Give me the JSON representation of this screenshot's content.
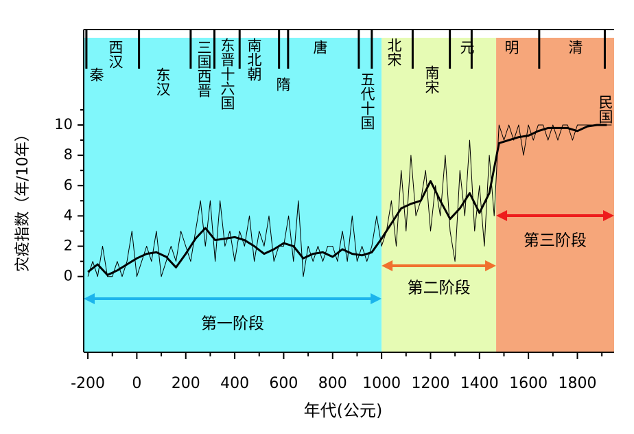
{
  "chart_data": {
    "type": "line",
    "x_label": "年代(公元)",
    "y_label": "灾疫指数（年/10年）",
    "xlim": [
      -217,
      1950
    ],
    "ylim": [
      -5,
      16.3
    ],
    "xticks": [
      -200,
      0,
      200,
      400,
      600,
      800,
      1000,
      1200,
      1400,
      1600,
      1800
    ],
    "xticks_minor": [
      -100,
      100,
      300,
      500,
      700,
      900,
      1100,
      1300,
      1500,
      1700,
      1900
    ],
    "yticks": [
      0,
      2,
      4,
      6,
      8,
      10
    ],
    "yticks_minor": [
      1,
      3,
      5,
      7,
      9,
      11
    ],
    "dynasties": [
      "秦",
      "西汉",
      "东汉",
      "三国西晋",
      "东晋十六国",
      "南北朝",
      "隋",
      "唐",
      "五代十国",
      "北宋",
      "南宋",
      "元",
      "明",
      "清",
      "民国"
    ],
    "dynasty_boundaries": [
      -206,
      9,
      220,
      317,
      420,
      581,
      618,
      907,
      960,
      1127,
      1279,
      1368,
      1644,
      1912
    ],
    "stages": [
      {
        "label": "第一阶段",
        "start": -217,
        "end": 1000,
        "color": "#1cb4ec",
        "background": "#80f7fb"
      },
      {
        "label": "第二阶段",
        "start": 1000,
        "end": 1468,
        "color": "#f0702e",
        "background": "#e6fbb4"
      },
      {
        "label": "第三阶段",
        "start": 1468,
        "end": 1950,
        "color": "#ee1c1c",
        "background": "#f6a67a"
      }
    ],
    "series": [
      {
        "color": "#000000",
        "width": 1,
        "x": [
          -200,
          -180,
          -160,
          -140,
          -120,
          -100,
          -80,
          -60,
          -40,
          -20,
          0,
          20,
          40,
          60,
          80,
          100,
          120,
          140,
          160,
          180,
          200,
          220,
          240,
          260,
          280,
          300,
          320,
          340,
          360,
          380,
          400,
          420,
          440,
          460,
          480,
          500,
          520,
          540,
          560,
          580,
          600,
          620,
          640,
          660,
          680,
          700,
          720,
          740,
          760,
          780,
          800,
          820,
          840,
          860,
          880,
          900,
          920,
          940,
          960,
          980,
          1000,
          1020,
          1040,
          1060,
          1080,
          1100,
          1120,
          1140,
          1160,
          1180,
          1200,
          1220,
          1240,
          1260,
          1280,
          1300,
          1320,
          1340,
          1360,
          1380,
          1400,
          1420,
          1440,
          1460,
          1480,
          1500,
          1520,
          1540,
          1560,
          1580,
          1600,
          1620,
          1640,
          1660,
          1680,
          1700,
          1720,
          1740,
          1760,
          1780,
          1800,
          1820,
          1840,
          1860,
          1880,
          1900,
          1920,
          1940
        ],
        "values": [
          0,
          1,
          0,
          2,
          0,
          0,
          1,
          0,
          1,
          3,
          0,
          1,
          2,
          1,
          3,
          0,
          1,
          2,
          1,
          3,
          2,
          1,
          3,
          5,
          2,
          5,
          1,
          5,
          2,
          3,
          1,
          3,
          2,
          4,
          1,
          3,
          2,
          4,
          1,
          2,
          2,
          4,
          1,
          5,
          0,
          2,
          1,
          2,
          1,
          2,
          2,
          1,
          3,
          1,
          4,
          1,
          2,
          1,
          2,
          4,
          2,
          3,
          5,
          2,
          7,
          3,
          8,
          4,
          5,
          7,
          3,
          6,
          4,
          8,
          3,
          1,
          7,
          4,
          9,
          3,
          6,
          2,
          8,
          4,
          10,
          9,
          10,
          9,
          10,
          8,
          10,
          9,
          10,
          10,
          9,
          10,
          9,
          10,
          10,
          9,
          10,
          10,
          10,
          10,
          10,
          10,
          10,
          10
        ]
      },
      {
        "color": "#000000",
        "width": 3,
        "x": [
          -200,
          -160,
          -120,
          -80,
          -40,
          0,
          40,
          80,
          120,
          160,
          200,
          240,
          280,
          320,
          360,
          400,
          440,
          480,
          520,
          560,
          600,
          640,
          680,
          720,
          760,
          800,
          840,
          880,
          920,
          960,
          1000,
          1040,
          1080,
          1120,
          1160,
          1200,
          1240,
          1280,
          1320,
          1360,
          1400,
          1440,
          1480,
          1520,
          1560,
          1600,
          1640,
          1680,
          1720,
          1760,
          1800,
          1840,
          1880,
          1920
        ],
        "values": [
          0.3,
          0.8,
          0.1,
          0.4,
          0.8,
          1.2,
          1.5,
          1.6,
          1.3,
          0.6,
          1.5,
          2.5,
          3.2,
          2.4,
          2.5,
          2.6,
          2.4,
          2.0,
          1.5,
          1.8,
          2.2,
          2.0,
          1.2,
          1.5,
          1.6,
          1.3,
          1.8,
          1.5,
          1.4,
          1.6,
          2.5,
          3.5,
          4.5,
          4.8,
          5.0,
          6.3,
          5.0,
          3.8,
          4.5,
          5.5,
          4.2,
          5.5,
          8.8,
          9.0,
          9.2,
          9.3,
          9.6,
          9.8,
          9.8,
          9.8,
          9.6,
          9.9,
          10,
          10
        ]
      }
    ]
  }
}
